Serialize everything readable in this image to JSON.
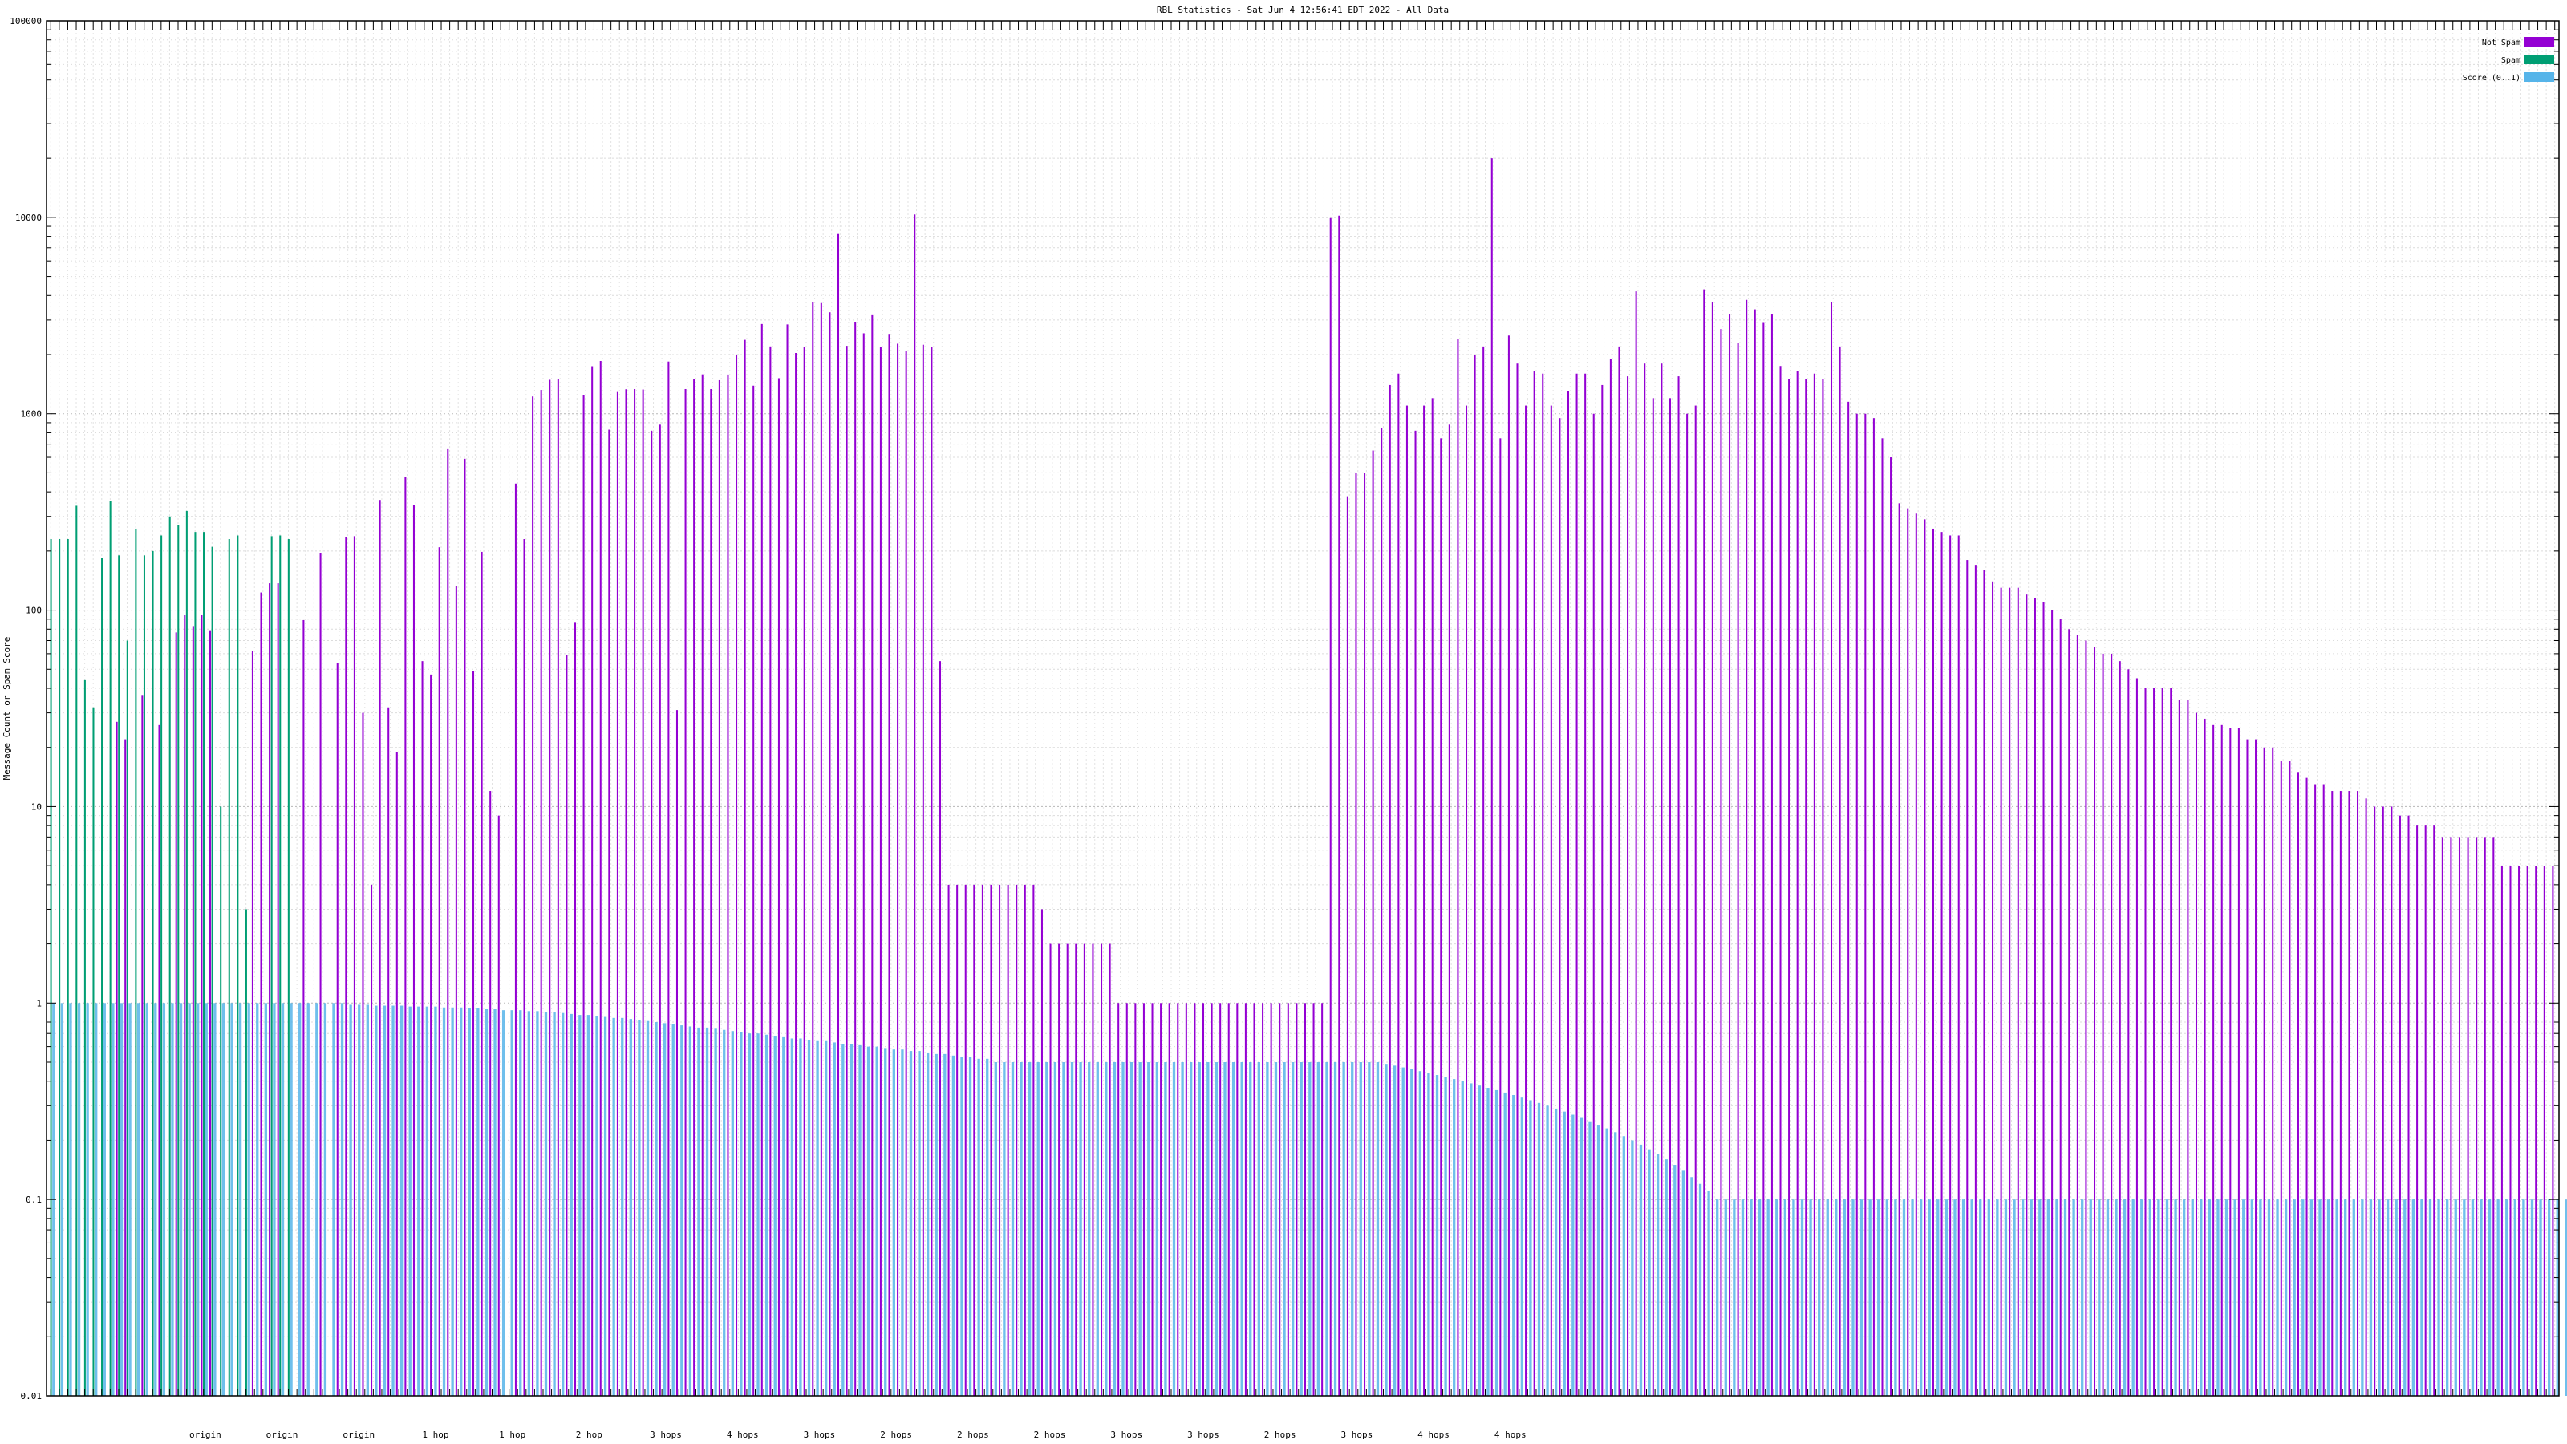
{
  "chart_data": {
    "type": "bar",
    "title": "RBL Statistics - Sat Jun  4 12:56:41 EDT 2022 - All Data",
    "ylabel": "Message Count or Spam Score",
    "yscale": "log",
    "ylim": [
      0.01,
      100000
    ],
    "yticks": [
      "0.01",
      "0.1",
      "1",
      "10",
      "100",
      "1000",
      "10000",
      "100000"
    ],
    "grid": true,
    "legend_position": "top-right",
    "series": [
      {
        "name": "Not Spam",
        "color": "#9400d3",
        "values": [
          0.01,
          0.01,
          0.01,
          0.01,
          0.01,
          0.01,
          0.01,
          0.01,
          27,
          22,
          0.01,
          37,
          0.01,
          26,
          0.01,
          77,
          95,
          83,
          95,
          79,
          0.01,
          0.01,
          0.01,
          0.01,
          62,
          123,
          137,
          137,
          0.01,
          0.01,
          89,
          0.01,
          196,
          0.01,
          54,
          236,
          238,
          30,
          4,
          364,
          32,
          19,
          478,
          342,
          55,
          47,
          209,
          660,
          133,
          590,
          49,
          198,
          12,
          9,
          0.01,
          441,
          230,
          1224,
          1322,
          1488,
          1497,
          59,
          87,
          1249,
          1745,
          1855,
          830,
          1290,
          1332,
          1335,
          1328,
          820,
          880,
          1843,
          31,
          1335,
          1496,
          1586,
          1335,
          1481,
          1583,
          1999,
          2378,
          1389,
          2863,
          2201,
          1516,
          2849,
          2038,
          2196,
          3705,
          3661,
          3286,
          8221,
          2216,
          2941,
          2567,
          3175,
          2186,
          2549,
          2272,
          2085,
          10341,
          2245,
          2192,
          55,
          4,
          4,
          4,
          4,
          4,
          4,
          4,
          4,
          4,
          4,
          4,
          3,
          2,
          2,
          2,
          2,
          2,
          2,
          2,
          2,
          1,
          1,
          1,
          1,
          1,
          1,
          1,
          1,
          1,
          1,
          1,
          1,
          1,
          1,
          1,
          1,
          1,
          1,
          1,
          1,
          1,
          1,
          1,
          1,
          1,
          9910,
          10200,
          380,
          500,
          500,
          650,
          850,
          1400,
          1600,
          1100,
          820,
          1100,
          1200,
          750,
          880,
          2400,
          1100,
          2000,
          2200,
          20000,
          750,
          2500,
          1800,
          1100,
          1650,
          1600,
          1100,
          950,
          1300,
          1600,
          1600,
          1000,
          1400,
          1900,
          2200,
          1550,
          4200,
          1800,
          1200,
          1800,
          1200,
          1550,
          1000,
          1100,
          4300,
          3700,
          2700,
          3200,
          2300,
          3800,
          3400,
          2900,
          3200,
          1750,
          1500,
          1650,
          1500,
          1600,
          1500,
          3700,
          2200,
          1150,
          1000,
          1000,
          950,
          750,
          600,
          350,
          330,
          310,
          290,
          260,
          250,
          240,
          240,
          180,
          170,
          160,
          140,
          130,
          130,
          130,
          120,
          115,
          110,
          100,
          90,
          80,
          75,
          70,
          65,
          60,
          60,
          55,
          50,
          45,
          40,
          40,
          40,
          40,
          35,
          35,
          30,
          28,
          26,
          26,
          25,
          25,
          22,
          22,
          20,
          20,
          17,
          17,
          15,
          14,
          13,
          13,
          12,
          12,
          12,
          12,
          11,
          10,
          10,
          10,
          9,
          9,
          8,
          8,
          8,
          7,
          7,
          7,
          7,
          7,
          7,
          7,
          5,
          5,
          5,
          5,
          5,
          5,
          5
        ]
      },
      {
        "name": "Spam",
        "color": "#009e73",
        "values": [
          230,
          230,
          230,
          340,
          44,
          32,
          185,
          360,
          190,
          70,
          260,
          190,
          200,
          240,
          300,
          270,
          320,
          250,
          250,
          210,
          10,
          230,
          240,
          3,
          0,
          0,
          238,
          240,
          230,
          0,
          0,
          0,
          0,
          0,
          0,
          0,
          0,
          0,
          0,
          0,
          0,
          0,
          0,
          0,
          0,
          0,
          0,
          0,
          0,
          0,
          0,
          0,
          0,
          0,
          0,
          0,
          0,
          0,
          0,
          0,
          0,
          0,
          0,
          0,
          0,
          0,
          0,
          0,
          0,
          0,
          0,
          0,
          0,
          0,
          0,
          0,
          0,
          0,
          0,
          0,
          0,
          0,
          0,
          0,
          0,
          0,
          0,
          0,
          0,
          0,
          0,
          0,
          0,
          0,
          0,
          0,
          0,
          0,
          0,
          0,
          0,
          0,
          0,
          0,
          0,
          0,
          0,
          0,
          0,
          0,
          0,
          0,
          0,
          0,
          0,
          0,
          0,
          0,
          0,
          0,
          0,
          0,
          0,
          0,
          0,
          0,
          0,
          0,
          0,
          0,
          0,
          0,
          0,
          0,
          0,
          0,
          0,
          0,
          0,
          0,
          0,
          0,
          0,
          0,
          0,
          0,
          0,
          0,
          0,
          0,
          0,
          0,
          0,
          0,
          0,
          0,
          0,
          0,
          0,
          0,
          0,
          0,
          0,
          0,
          0,
          0,
          0,
          0,
          0,
          0,
          0,
          0,
          0,
          0,
          0,
          0,
          0,
          0,
          0,
          0,
          0,
          0,
          0,
          0,
          0,
          0,
          0,
          0,
          0,
          0,
          0,
          0,
          0,
          0,
          0,
          0,
          0,
          0,
          0,
          0,
          0,
          0,
          0,
          0,
          0,
          0,
          0,
          0,
          0,
          0,
          0,
          0,
          0,
          0,
          0,
          0,
          0,
          0,
          0,
          0,
          0,
          0,
          0,
          0,
          0,
          0,
          0,
          0,
          0,
          0,
          0,
          0,
          0,
          0,
          0,
          0,
          0,
          0,
          0,
          0,
          0,
          0,
          0,
          0,
          0,
          0,
          0,
          0,
          0,
          0,
          0,
          0,
          0,
          0,
          0,
          0,
          0,
          0,
          0,
          0,
          0,
          0,
          0,
          0,
          0,
          0,
          0,
          0,
          0,
          0,
          0,
          0,
          0,
          0,
          0,
          0,
          0,
          0,
          0,
          0,
          0,
          0,
          0,
          0,
          0,
          0,
          0,
          0,
          0,
          0,
          0,
          0,
          0,
          0,
          0,
          0,
          0,
          0,
          0,
          0,
          0,
          0,
          0,
          0,
          0,
          0,
          0,
          0,
          0,
          0,
          0,
          0,
          0,
          0,
          0,
          0,
          0,
          0,
          0,
          0,
          0,
          0,
          0,
          0,
          0,
          0,
          0,
          0,
          0,
          0,
          0,
          0,
          0,
          0,
          0,
          0,
          0,
          0
        ]
      },
      {
        "name": "Score (0..1)",
        "color": "#56b4e9",
        "values": [
          1,
          1,
          1,
          1,
          1,
          1,
          1,
          1,
          1,
          1,
          1,
          1,
          1,
          1,
          1,
          1,
          1,
          1,
          1,
          1,
          1,
          1,
          1,
          1,
          1,
          1,
          1,
          1,
          1,
          1,
          1,
          1,
          1,
          1,
          1,
          0.98,
          0.98,
          0.98,
          0.97,
          0.97,
          0.97,
          0.97,
          0.96,
          0.96,
          0.96,
          0.96,
          0.95,
          0.95,
          0.95,
          0.94,
          0.94,
          0.93,
          0.93,
          0.92,
          0.92,
          0.92,
          0.91,
          0.91,
          0.9,
          0.9,
          0.89,
          0.88,
          0.87,
          0.87,
          0.86,
          0.85,
          0.84,
          0.84,
          0.83,
          0.82,
          0.81,
          0.8,
          0.79,
          0.78,
          0.77,
          0.76,
          0.75,
          0.75,
          0.74,
          0.73,
          0.72,
          0.71,
          0.7,
          0.7,
          0.69,
          0.68,
          0.67,
          0.66,
          0.66,
          0.65,
          0.64,
          0.64,
          0.63,
          0.62,
          0.62,
          0.61,
          0.6,
          0.6,
          0.59,
          0.58,
          0.58,
          0.57,
          0.57,
          0.56,
          0.55,
          0.55,
          0.54,
          0.53,
          0.53,
          0.52,
          0.52,
          0.5,
          0.5,
          0.5,
          0.5,
          0.5,
          0.5,
          0.5,
          0.5,
          0.5,
          0.5,
          0.5,
          0.5,
          0.5,
          0.5,
          0.5,
          0.5,
          0.5,
          0.5,
          0.5,
          0.5,
          0.5,
          0.5,
          0.5,
          0.5,
          0.5,
          0.5,
          0.5,
          0.5,
          0.5,
          0.5,
          0.5,
          0.5,
          0.5,
          0.5,
          0.5,
          0.5,
          0.5,
          0.5,
          0.5,
          0.5,
          0.5,
          0.5,
          0.5,
          0.5,
          0.5,
          0.5,
          0.49,
          0.48,
          0.47,
          0.46,
          0.45,
          0.44,
          0.43,
          0.42,
          0.41,
          0.4,
          0.39,
          0.38,
          0.37,
          0.36,
          0.35,
          0.34,
          0.33,
          0.32,
          0.31,
          0.3,
          0.29,
          0.28,
          0.27,
          0.26,
          0.25,
          0.24,
          0.23,
          0.22,
          0.21,
          0.2,
          0.19,
          0.18,
          0.17,
          0.16,
          0.15,
          0.14,
          0.13,
          0.12,
          0.11,
          0.1,
          0.1,
          0.1,
          0.1,
          0.1,
          0.1,
          0.1,
          0.1,
          0.1,
          0.1,
          0.1,
          0.1,
          0.1,
          0.1,
          0.1,
          0.1,
          0.1,
          0.1,
          0.1,
          0.1,
          0.1,
          0.1,
          0.1,
          0.1,
          0.1,
          0.1,
          0.1,
          0.1,
          0.1,
          0.1,
          0.1,
          0.1,
          0.1,
          0.1,
          0.1,
          0.1,
          0.1,
          0.1,
          0.1,
          0.1,
          0.1,
          0.1,
          0.1,
          0.1,
          0.1,
          0.1,
          0.1,
          0.1,
          0.1,
          0.1,
          0.1,
          0.1,
          0.1,
          0.1,
          0.1,
          0.1,
          0.1,
          0.1,
          0.1,
          0.1,
          0.1,
          0.1,
          0.1,
          0.1,
          0.1,
          0.1,
          0.1,
          0.1,
          0.1,
          0.1,
          0.1,
          0.1,
          0.1,
          0.1,
          0.1,
          0.1,
          0.1,
          0.1,
          0.1,
          0.1,
          0.1,
          0.1,
          0.1,
          0.1,
          0.1,
          0.1,
          0.1,
          0.1,
          0.1,
          0.1,
          0.1,
          0.1,
          0.1,
          0.1,
          0.1,
          0.1,
          0.1,
          0.1,
          0.1,
          0.1,
          0.1,
          0.1,
          0.1,
          0.1,
          0.1,
          0.1,
          0.1,
          0.1,
          0.1
        ]
      }
    ],
    "xticklabels_bottom": [
      "origin",
      "origin",
      "origin",
      "1 hop",
      "1 hop",
      "2 hop",
      "3 hops",
      "4 hops",
      "3 hops",
      "2 hops",
      "2 hops",
      "2 hops",
      "3 hops",
      "3 hops",
      "2 hops",
      "3 hops",
      "4 hops",
      "4 hops"
    ]
  }
}
